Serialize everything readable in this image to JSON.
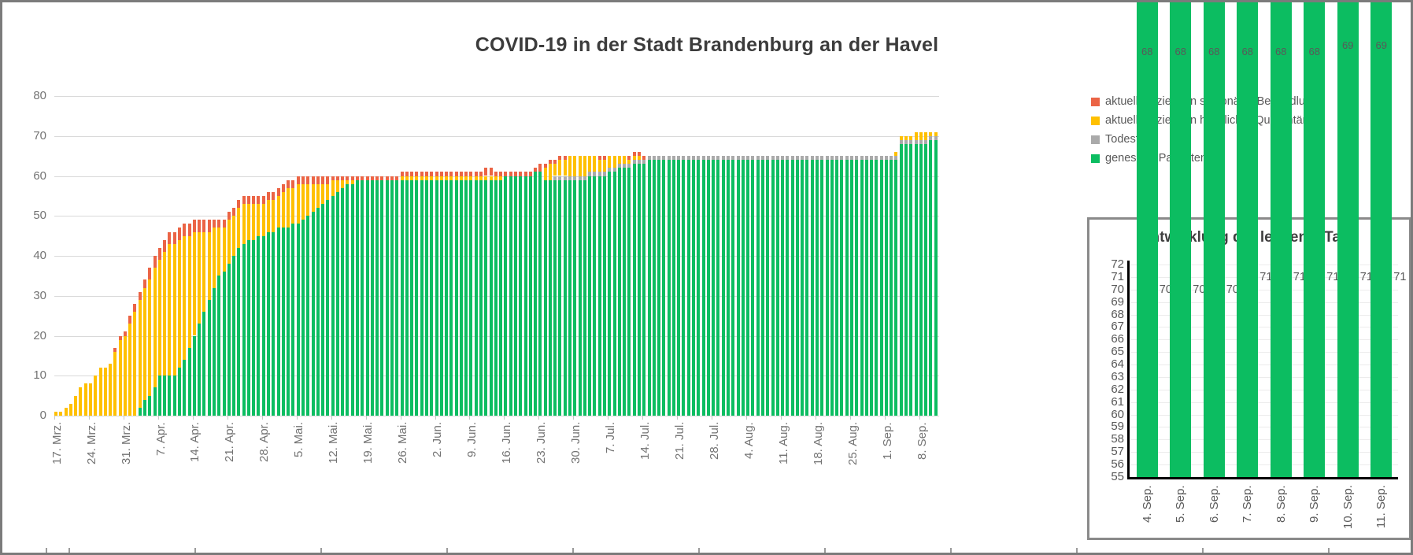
{
  "page": {
    "title": "COVID-19 in der Stadt Brandenburg an der Havel"
  },
  "legend": {
    "items": [
      {
        "label": "aktuell Infizierte in stationärer Behandlung",
        "color": "#eb6445"
      },
      {
        "label": "aktuell Infizierte in häuslicher Quarantäne",
        "color": "#ffc000"
      },
      {
        "label": "Todesfälle",
        "color": "#aaaaaa"
      },
      {
        "label": "genesene Patienten",
        "color": "#0cbd61"
      }
    ]
  },
  "chart_data": [
    {
      "id": "main",
      "type": "bar",
      "stacked": true,
      "title": "COVID-19 in der Stadt Brandenburg an der Havel",
      "xlabel": "",
      "ylabel": "",
      "ylim": [
        0,
        80
      ],
      "yticks": [
        0,
        10,
        20,
        30,
        40,
        50,
        60,
        70,
        80
      ],
      "grid": true,
      "legend_position": "right",
      "x_start": "17. Mrz.",
      "x_end": "11. Sep.",
      "xtick_every": 7,
      "xtick_labels": [
        "17. Mrz.",
        "24. Mrz.",
        "31. Mrz.",
        "7. Apr.",
        "14. Apr.",
        "21. Apr.",
        "28. Apr.",
        "5. Mai.",
        "12. Mai.",
        "19. Mai.",
        "26. Mai.",
        "2. Jun.",
        "9. Jun.",
        "16. Jun.",
        "23. Jun.",
        "30. Jun.",
        "7. Jul.",
        "14. Jul.",
        "21. Jul.",
        "28. Jul.",
        "4. Aug.",
        "11. Aug.",
        "18. Aug.",
        "25. Aug.",
        "1. Sep.",
        "8. Sep."
      ],
      "series": [
        {
          "key": "genesene",
          "name": "genesene Patienten",
          "color": "#0cbd61",
          "values": [
            0,
            0,
            0,
            0,
            0,
            0,
            0,
            0,
            0,
            0,
            0,
            0,
            0,
            0,
            0,
            0,
            0,
            2,
            4,
            5,
            7,
            10,
            10,
            10,
            10,
            12,
            14,
            17,
            20,
            23,
            26,
            29,
            32,
            35,
            36,
            38,
            40,
            42,
            43,
            44,
            44,
            45,
            45,
            46,
            46,
            47,
            47,
            47,
            48,
            48,
            49,
            50,
            51,
            52,
            53,
            54,
            55,
            56,
            57,
            58,
            58,
            59,
            59,
            59,
            59,
            59,
            59,
            59,
            59,
            59,
            59,
            59,
            59,
            59,
            59,
            59,
            59,
            59,
            59,
            59,
            59,
            59,
            59,
            59,
            59,
            59,
            59,
            59,
            59,
            59,
            59,
            60,
            60,
            60,
            60,
            60,
            60,
            61,
            61,
            59,
            59,
            59,
            59,
            59,
            59,
            59,
            59,
            59,
            60,
            60,
            60,
            60,
            61,
            61,
            62,
            62,
            62,
            63,
            63,
            63,
            64,
            64,
            64,
            64,
            64,
            64,
            64,
            64,
            64,
            64,
            64,
            64,
            64,
            64,
            64,
            64,
            64,
            64,
            64,
            64,
            64,
            64,
            64,
            64,
            64,
            64,
            64,
            64,
            64,
            64,
            64,
            64,
            64,
            64,
            64,
            64,
            64,
            64,
            64,
            64,
            64,
            64,
            64,
            64,
            64,
            64,
            64,
            64,
            64,
            64,
            64,
            68,
            68,
            68,
            68,
            68,
            68,
            69,
            69
          ]
        },
        {
          "key": "todesfaelle",
          "name": "Todesfälle",
          "color": "#aaaaaa",
          "values": [
            0,
            0,
            0,
            0,
            0,
            0,
            0,
            0,
            0,
            0,
            0,
            0,
            0,
            0,
            0,
            0,
            0,
            0,
            0,
            0,
            0,
            0,
            0,
            0,
            0,
            0,
            0,
            0,
            0,
            0,
            0,
            0,
            0,
            0,
            0,
            0,
            0,
            0,
            0,
            0,
            0,
            0,
            0,
            0,
            0,
            0,
            0,
            0,
            0,
            0,
            0,
            0,
            0,
            0,
            0,
            0,
            0,
            0,
            0,
            0,
            0,
            0,
            0,
            0,
            0,
            0,
            0,
            0,
            0,
            0,
            0,
            0,
            0,
            0,
            0,
            0,
            0,
            0,
            0,
            0,
            0,
            0,
            0,
            0,
            0,
            0,
            0,
            0,
            0,
            0,
            0,
            0,
            0,
            0,
            0,
            0,
            0,
            0,
            0,
            0,
            0,
            1,
            1,
            1,
            1,
            1,
            1,
            1,
            1,
            1,
            1,
            1,
            1,
            1,
            1,
            1,
            1,
            1,
            1,
            1,
            1,
            1,
            1,
            1,
            1,
            1,
            1,
            1,
            1,
            1,
            1,
            1,
            1,
            1,
            1,
            1,
            1,
            1,
            1,
            1,
            1,
            1,
            1,
            1,
            1,
            1,
            1,
            1,
            1,
            1,
            1,
            1,
            1,
            1,
            1,
            1,
            1,
            1,
            1,
            1,
            1,
            1,
            1,
            1,
            1,
            1,
            1,
            1,
            1,
            1,
            1,
            1,
            1,
            1,
            1,
            1,
            1,
            1,
            1
          ]
        },
        {
          "key": "quarantaene",
          "name": "aktuell Infizierte in häuslicher Quarantäne",
          "color": "#ffc000",
          "values": [
            1,
            1,
            2,
            3,
            5,
            7,
            8,
            8,
            10,
            12,
            12,
            13,
            16,
            19,
            20,
            23,
            26,
            27,
            28,
            29,
            30,
            29,
            31,
            33,
            33,
            32,
            31,
            28,
            26,
            23,
            20,
            17,
            15,
            12,
            11,
            11,
            10,
            10,
            10,
            9,
            9,
            8,
            8,
            8,
            8,
            8,
            9,
            10,
            9,
            10,
            9,
            8,
            7,
            6,
            5,
            4,
            4,
            3,
            2,
            1,
            1,
            0,
            0,
            0,
            0,
            0,
            0,
            0,
            0,
            0,
            1,
            1,
            1,
            1,
            1,
            1,
            1,
            1,
            1,
            1,
            1,
            1,
            1,
            1,
            1,
            1,
            1,
            1,
            1,
            1,
            1,
            0,
            0,
            0,
            0,
            0,
            0,
            0,
            0,
            3,
            4,
            3,
            4,
            4,
            5,
            5,
            5,
            5,
            4,
            4,
            3,
            3,
            3,
            3,
            2,
            2,
            1,
            1,
            1,
            0,
            0,
            0,
            0,
            0,
            0,
            0,
            0,
            0,
            0,
            0,
            0,
            0,
            0,
            0,
            0,
            0,
            0,
            0,
            0,
            0,
            0,
            0,
            0,
            0,
            0,
            0,
            0,
            0,
            0,
            0,
            0,
            0,
            0,
            0,
            0,
            0,
            0,
            0,
            0,
            0,
            0,
            0,
            0,
            0,
            0,
            0,
            0,
            0,
            0,
            0,
            1,
            1,
            1,
            1,
            2,
            2,
            2,
            1,
            1
          ]
        },
        {
          "key": "stationaer",
          "name": "aktuell Infizierte in stationärer Behandlung",
          "color": "#eb6445",
          "values": [
            0,
            0,
            0,
            0,
            0,
            0,
            0,
            0,
            0,
            0,
            0,
            0,
            1,
            1,
            1,
            2,
            2,
            2,
            2,
            3,
            3,
            3,
            3,
            3,
            3,
            3,
            3,
            3,
            3,
            3,
            3,
            3,
            2,
            2,
            2,
            2,
            2,
            2,
            2,
            2,
            2,
            2,
            2,
            2,
            2,
            2,
            2,
            2,
            2,
            2,
            2,
            2,
            2,
            2,
            2,
            2,
            1,
            1,
            1,
            1,
            1,
            1,
            1,
            1,
            1,
            1,
            1,
            1,
            1,
            1,
            1,
            1,
            1,
            1,
            1,
            1,
            1,
            1,
            1,
            1,
            1,
            1,
            1,
            1,
            1,
            1,
            1,
            2,
            2,
            1,
            1,
            1,
            1,
            1,
            1,
            1,
            1,
            1,
            2,
            1,
            1,
            1,
            1,
            1,
            0,
            0,
            0,
            0,
            0,
            0,
            1,
            1,
            0,
            0,
            0,
            0,
            1,
            1,
            1,
            1,
            0,
            0,
            0,
            0,
            0,
            0,
            0,
            0,
            0,
            0,
            0,
            0,
            0,
            0,
            0,
            0,
            0,
            0,
            0,
            0,
            0,
            0,
            0,
            0,
            0,
            0,
            0,
            0,
            0,
            0,
            0,
            0,
            0,
            0,
            0,
            0,
            0,
            0,
            0,
            0,
            0,
            0,
            0,
            0,
            0,
            0,
            0,
            0,
            0,
            0,
            0,
            0,
            0,
            0,
            0,
            0,
            0,
            0,
            0
          ]
        }
      ]
    },
    {
      "id": "inset",
      "type": "bar",
      "stacked": true,
      "title": "Entwicklung der letzten 7 Tage",
      "ylim": [
        55,
        72
      ],
      "ytick_step": 1,
      "grid": true,
      "categories": [
        "4. Sep.",
        "5. Sep.",
        "6. Sep.",
        "7. Sep.",
        "8. Sep.",
        "9. Sep.",
        "10. Sep.",
        "11. Sep."
      ],
      "series": [
        {
          "key": "genesene",
          "name": "genesene Patienten",
          "color": "#0cbd61",
          "values": [
            68,
            68,
            68,
            68,
            68,
            68,
            69,
            69
          ]
        },
        {
          "key": "todesfaelle",
          "name": "Todesfälle",
          "color": "#b3b3b3",
          "values": [
            1,
            1,
            1,
            1,
            1,
            1,
            1,
            1
          ]
        },
        {
          "key": "quarantaene",
          "name": "aktuell Infizierte in häuslicher Quarantäne",
          "color": "#ffc000",
          "values": [
            1,
            1,
            1,
            2,
            2,
            2,
            1,
            1
          ]
        }
      ],
      "total_labels": [
        70,
        70,
        70,
        71,
        71,
        71,
        71,
        71
      ]
    }
  ]
}
